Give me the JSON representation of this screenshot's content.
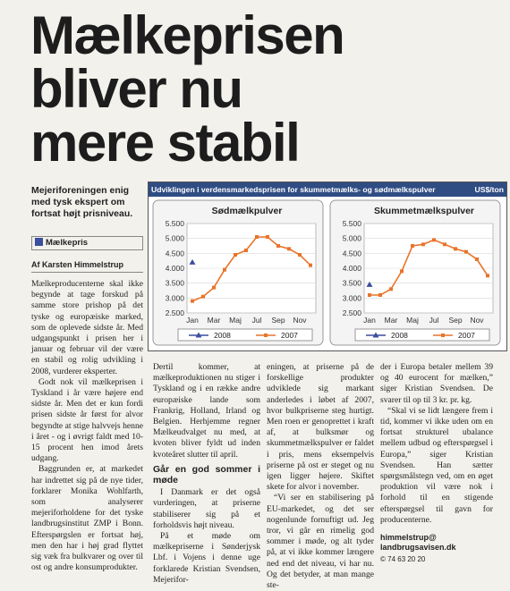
{
  "headline": [
    "Mælkeprisen",
    "bliver nu",
    "mere stabil"
  ],
  "lead": "Mejeriforeningen enig med tysk ekspert om fortsat højt prisniveau.",
  "section": "Mælkepris",
  "byline": "Af Karsten Himmelstrup",
  "chart_header": {
    "title": "Udviklingen i verdensmarkedsprisen for skummetmælks- og sødmælkspulver",
    "unit": "US$/ton"
  },
  "chart_data": [
    {
      "type": "line",
      "title": "Sødmælkpulver",
      "categories": [
        "Jan",
        null,
        "Mar",
        null,
        "Maj",
        null,
        "Jul",
        null,
        "Sep",
        null,
        "Nov",
        null
      ],
      "series": [
        {
          "name": "2008",
          "color": "#3b4f9c",
          "values": [
            4200,
            null,
            null,
            null,
            null,
            null,
            null,
            null,
            null,
            null,
            null,
            null
          ]
        },
        {
          "name": "2007",
          "color": "#e8742a",
          "values": [
            2900,
            3050,
            3350,
            3950,
            4450,
            4600,
            5050,
            5050,
            4750,
            4650,
            4450,
            4100
          ]
        }
      ],
      "ylim": [
        2500,
        5500
      ],
      "yticks": [
        {
          "value": 2500,
          "label": "2.500"
        },
        {
          "value": 3000,
          "label": "3.000"
        },
        {
          "value": 3500,
          "label": "3.500"
        },
        {
          "value": 4000,
          "label": "4.000"
        },
        {
          "value": 4500,
          "label": "4.500"
        },
        {
          "value": 5000,
          "label": "5.000"
        },
        {
          "value": 5500,
          "label": "5.500"
        }
      ],
      "grid": true,
      "legend": "bottom"
    },
    {
      "type": "line",
      "title": "Skummetmælkspulver",
      "categories": [
        "Jan",
        null,
        "Mar",
        null,
        "Maj",
        null,
        "Jul",
        null,
        "Sep",
        null,
        "Nov",
        null
      ],
      "series": [
        {
          "name": "2008",
          "color": "#3b4f9c",
          "values": [
            3450,
            null,
            null,
            null,
            null,
            null,
            null,
            null,
            null,
            null,
            null,
            null
          ]
        },
        {
          "name": "2007",
          "color": "#e8742a",
          "values": [
            3100,
            3100,
            3300,
            3900,
            4750,
            4800,
            4950,
            4800,
            4650,
            4550,
            4300,
            3750
          ]
        }
      ],
      "ylim": [
        2500,
        5500
      ],
      "yticks": [
        {
          "value": 2500,
          "label": "2.500"
        },
        {
          "value": 3000,
          "label": "3.000"
        },
        {
          "value": 3500,
          "label": "3.500"
        },
        {
          "value": 4000,
          "label": "4.000"
        },
        {
          "value": 4500,
          "label": "4.500"
        },
        {
          "value": 5000,
          "label": "5.000"
        },
        {
          "value": 5500,
          "label": "5.500"
        }
      ],
      "grid": true,
      "legend": "bottom"
    }
  ],
  "columns": [
    {
      "paragraphs": [
        "Mælkeproducenterne skal ikke begynde at tage forskud på samme store prishop på det tyske og europæiske marked, som de oplevede sidste år. Med udgangspunkt i prisen her i januar og februar vil der være en stabil og rolig udvikling i 2008, vurderer eksperter.",
        "Godt nok vil mælkeprisen i Tyskland i år være højere end sidste år. Men det er kun fordi prisen sidste år først for alvor begyndte at stige halvvejs henne i året - og i øvrigt faldt med 10-15 procent hen imod årets udgang.",
        "Baggrunden er, at markedet har indrettet sig på de nye tider, forklarer Monika Wohlfarth, som analyserer mejeriforholdene for det tyske landbrugsinstitut ZMP i Bonn. Efterspørgslen er fortsat høj, men den har i høj grad flyttet sig væk fra bulkvarer og over til ost og andre konsumprodukter."
      ]
    },
    {
      "before": [
        "Dertil kommer, at mælkeproduktionen nu stiger i Tyskland og i en række andre europæiske lande som Frankrig, Holland, Irland og Belgien. Herhjemme regner Mælkeudvalget nu med, at kvoten bliver fyldt ud inden kvoteåret slutter til april."
      ],
      "subhead": "Går en god sommer i møde",
      "after": [
        "I Danmark er det også vurderingen, at priserne stabiliserer sig på et forholdsvis højt niveau.",
        "På et møde om mælkepriserne i Sønderjysk Lbf. i Vojens i denne uge forklarede Kristian Svendsen, Mejerifor-"
      ]
    },
    {
      "paragraphs": [
        "eningen, at priserne på de forskellige produkter udviklede sig markant anderledes i løbet af 2007, hvor bulkpriserne steg hurtigt. Men roen er genoprettet i kraft af, at bulksmør og skummetmælkspulver er faldet i pris, mens eksempelvis priserne på ost er steget og nu igen ligger højere. Skiftet skete for alvor i november.",
        "“Vi ser en stabilisering på EU-markedet, og det ser nogenlunde fornuftigt ud. Jeg tror, vi går en rimelig god sommer i møde, og alt tyder på, at vi ikke kommer længere ned end det niveau, vi har nu. Og det betyder, at man mange ste-"
      ]
    },
    {
      "paragraphs": [
        "der i Europa betaler mellem 39 og 40 eurocent for mælken,” siger Kristian Svendsen. De svarer til op til 3 kr. pr. kg.",
        "“Skal vi se lidt længere frem i tid, kommer vi ikke uden om en fortsat strukturel ubalance mellem udbud og efterspørgsel i Europa,” siger Kristian Svendsen. Han sætter spørgsmålstegn ved, om en øget produktion vil være nok i forhold til en stigende efterspørgsel til gavn for producenterne."
      ],
      "contact": [
        "himmelstrup@",
        "landbrugsavisen.dk"
      ],
      "phone": "© 74 63 20 20"
    }
  ]
}
